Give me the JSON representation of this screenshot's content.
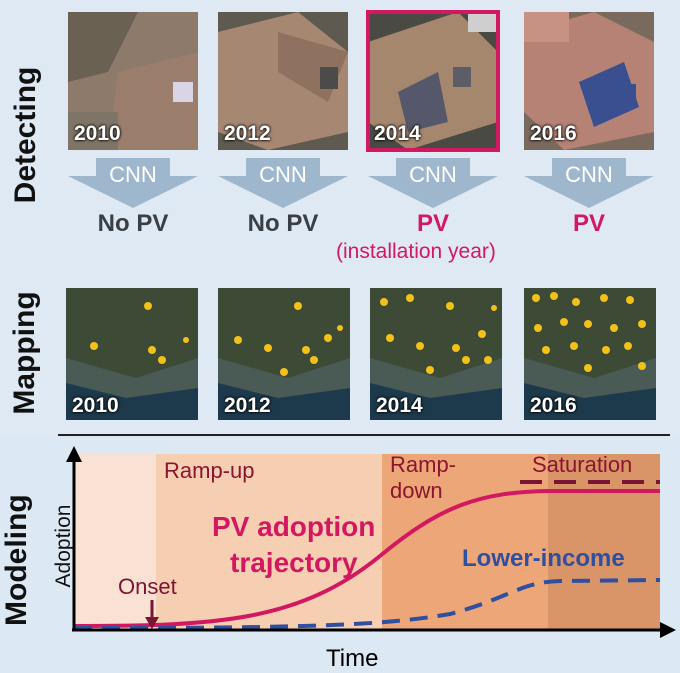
{
  "detecting": {
    "section_label": "Detecting",
    "thumbnails": [
      {
        "year": "2010",
        "cnn": "CNN",
        "result": "No PV",
        "color": "#3a3f46"
      },
      {
        "year": "2012",
        "cnn": "CNN",
        "result": "No PV",
        "color": "#3a3f46"
      },
      {
        "year": "2014",
        "cnn": "CNN",
        "result": "PV",
        "sub": "(installation year)",
        "color": "#d21860"
      },
      {
        "year": "2016",
        "cnn": "CNN",
        "result": "PV",
        "color": "#d21860"
      }
    ]
  },
  "mapping": {
    "section_label": "Mapping",
    "maps": [
      {
        "year": "2010"
      },
      {
        "year": "2012"
      },
      {
        "year": "2014"
      },
      {
        "year": "2016"
      }
    ]
  },
  "modeling": {
    "section_label": "Modeling",
    "y_axis_label": "Adoption",
    "x_axis_label": "Time",
    "phases": [
      "Ramp-up",
      "Ramp-",
      "down",
      "Saturation"
    ],
    "onset_label": "Onset",
    "pv_label_line1": "PV adoption",
    "pv_label_line2": "trajectory",
    "lower_income_label": "Lower-income",
    "colors": {
      "pv": "#d21860",
      "lower_income": "#2f4fa0",
      "phase_text": "#8a1530"
    }
  }
}
